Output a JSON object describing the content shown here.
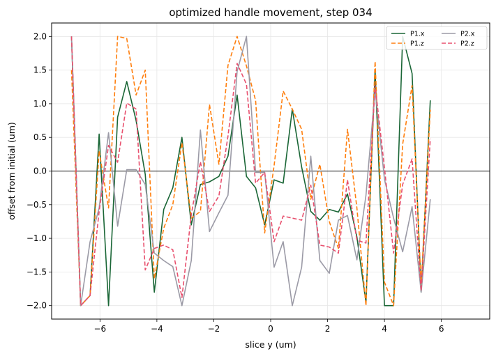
{
  "chart_data": {
    "type": "line",
    "title": "optimized handle movement, step 034",
    "xlabel": "slice y (um)",
    "ylabel": "offset from initial (um)",
    "xlim": [
      -7.7,
      7.7
    ],
    "ylim": [
      -2.2,
      2.2
    ],
    "xticks": [
      -6,
      -4,
      -2,
      0,
      2,
      4,
      6
    ],
    "yticks": [
      -2.0,
      -1.5,
      -1.0,
      -0.5,
      0.0,
      0.5,
      1.0,
      1.5,
      2.0
    ],
    "xtick_labels": [
      "−6",
      "−4",
      "−2",
      "0",
      "2",
      "4",
      "6"
    ],
    "ytick_labels": [
      "−2.0",
      "−1.5",
      "−1.0",
      "−0.5",
      "0.0",
      "0.5",
      "1.0",
      "1.5",
      "2.0"
    ],
    "grid": true,
    "zero_line": 0.0,
    "legend_position": "top-right",
    "x": [
      -7.0,
      -6.68,
      -6.35,
      -6.03,
      -5.7,
      -5.38,
      -5.06,
      -4.73,
      -4.41,
      -4.09,
      -3.76,
      -3.44,
      -3.12,
      -2.79,
      -2.47,
      -2.15,
      -1.82,
      -1.5,
      -1.18,
      -0.85,
      -0.53,
      -0.21,
      0.12,
      0.44,
      0.76,
      1.09,
      1.41,
      1.73,
      2.06,
      2.38,
      2.7,
      3.03,
      3.35,
      3.67,
      4.0,
      4.32,
      4.64,
      4.97,
      5.29,
      5.61,
      5.94,
      6.26,
      6.58,
      6.91,
      7.23
    ],
    "series": [
      {
        "name": "P1.x",
        "color": "#1a6636",
        "dash": "solid",
        "values": [
          2.0,
          -2.0,
          -1.85,
          0.55,
          -2.0,
          0.8,
          1.33,
          0.75,
          -0.05,
          -1.8,
          -0.57,
          -0.25,
          0.5,
          -0.8,
          -0.2,
          -0.16,
          -0.08,
          0.22,
          1.13,
          -0.08,
          -0.25,
          -0.8,
          -0.13,
          -0.18,
          0.92,
          0.06,
          -0.6,
          -0.73,
          -0.57,
          -0.61,
          -0.34,
          -0.98,
          -1.95,
          1.5,
          -2.0,
          -2.0,
          2.0,
          1.45,
          -1.8,
          1.05,
          null,
          null,
          null,
          null,
          null
        ]
      },
      {
        "name": "P1.z",
        "color": "#ff7f0e",
        "dash": "dashed",
        "values": [
          1.5,
          -2.0,
          -1.85,
          0.3,
          -0.55,
          2.0,
          1.97,
          1.13,
          1.5,
          -1.6,
          -0.85,
          -0.5,
          0.42,
          -0.7,
          -0.6,
          0.99,
          0.1,
          1.57,
          2.0,
          1.56,
          1.05,
          -0.92,
          0.08,
          1.19,
          0.92,
          0.62,
          -0.42,
          0.1,
          -0.75,
          -1.15,
          0.62,
          -0.55,
          -2.0,
          1.63,
          -1.65,
          -2.0,
          0.4,
          1.27,
          -1.7,
          0.91,
          null,
          null,
          null,
          null,
          null
        ]
      },
      {
        "name": "P2.x",
        "color": "#9b9aa6",
        "dash": "solid",
        "values": [
          2.0,
          -2.0,
          -1.05,
          -0.55,
          0.57,
          -0.82,
          0.02,
          0.02,
          -0.2,
          -1.22,
          -1.33,
          -1.42,
          -2.0,
          -1.33,
          0.61,
          -0.9,
          -0.62,
          -0.36,
          1.48,
          2.0,
          -0.02,
          -0.02,
          -1.43,
          -1.05,
          -2.0,
          -1.43,
          0.22,
          -1.33,
          -1.52,
          -0.73,
          -0.66,
          -1.32,
          -0.36,
          1.2,
          -0.12,
          -0.7,
          -1.2,
          -0.53,
          -1.8,
          -0.42,
          null,
          null,
          null,
          null,
          null
        ]
      },
      {
        "name": "P2.z",
        "color": "#e8506e",
        "dash": "dashed",
        "values": [
          2.0,
          -2.0,
          -1.85,
          -0.6,
          0.38,
          0.13,
          1.01,
          0.92,
          -1.47,
          -1.15,
          -1.1,
          -1.17,
          -1.88,
          -0.65,
          0.14,
          -0.6,
          -0.37,
          0.52,
          1.6,
          1.29,
          -0.18,
          -0.02,
          -1.05,
          -0.67,
          -0.7,
          -0.73,
          -0.21,
          -1.1,
          -1.13,
          -1.22,
          -0.13,
          -1.03,
          -1.07,
          1.27,
          0.05,
          -1.22,
          -0.2,
          0.18,
          -1.78,
          0.48,
          null,
          null,
          null,
          null,
          null
        ]
      }
    ]
  }
}
